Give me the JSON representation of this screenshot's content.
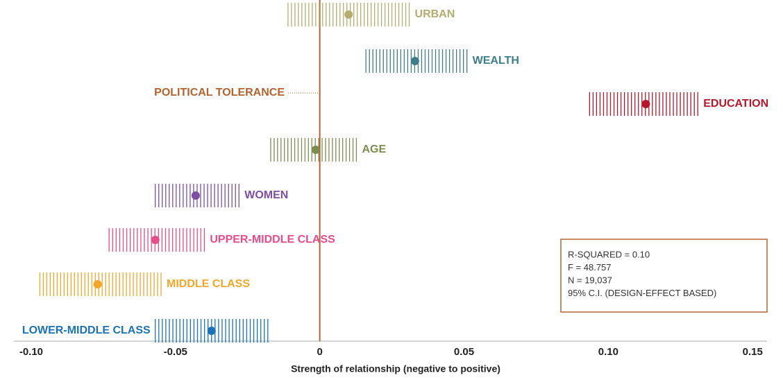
{
  "chart_data": {
    "type": "coefficient",
    "dependent_variable": "POLITICAL TOLERANCE",
    "x_label": "Strength of relationship (negative to positive)",
    "xlim": [
      -0.106,
      0.155
    ],
    "xticks": [
      {
        "value": -0.1,
        "label": "-0.10"
      },
      -0.05,
      0,
      0.05,
      {
        "value": 0.1,
        "label": "0.10"
      },
      0.15
    ],
    "series": [
      {
        "name": "URBAN",
        "color": "#b5ad6e",
        "value": 0.01,
        "lower": -0.011,
        "upper": 0.031
      },
      {
        "name": "WEALTH",
        "color": "#3e7d8a",
        "value": 0.033,
        "lower": 0.016,
        "upper": 0.051
      },
      {
        "name": "EDUCATION",
        "color": "#b5182b",
        "value": 0.113,
        "lower": 0.0935,
        "upper": 0.131
      },
      {
        "name": "AGE",
        "color": "#7d8c4f",
        "value": -0.0014,
        "lower": -0.017,
        "upper": 0.0127
      },
      {
        "name": "WOMEN",
        "color": "#7d4fa3",
        "value": -0.043,
        "lower": -0.057,
        "upper": -0.028
      },
      {
        "name": "UPPER-MIDDLE CLASS",
        "color": "#e64d8a",
        "value": -0.057,
        "lower": -0.073,
        "upper": -0.04
      },
      {
        "name": "MIDDLE CLASS",
        "color": "#f2a62a",
        "value": -0.077,
        "lower": -0.097,
        "upper": -0.055
      },
      {
        "name": "LOWER-MIDDLE CLASS",
        "color": "#1a73b8",
        "value": -0.0375,
        "lower": -0.057,
        "upper": -0.018,
        "label_position": "left"
      }
    ],
    "notes": [
      "R-SQUARED = 0.10",
      "F = 48.757",
      "N = 19,037",
      "95% C.I. (DESIGN-EFFECT BASED)"
    ],
    "note_color": "#b5632e"
  }
}
